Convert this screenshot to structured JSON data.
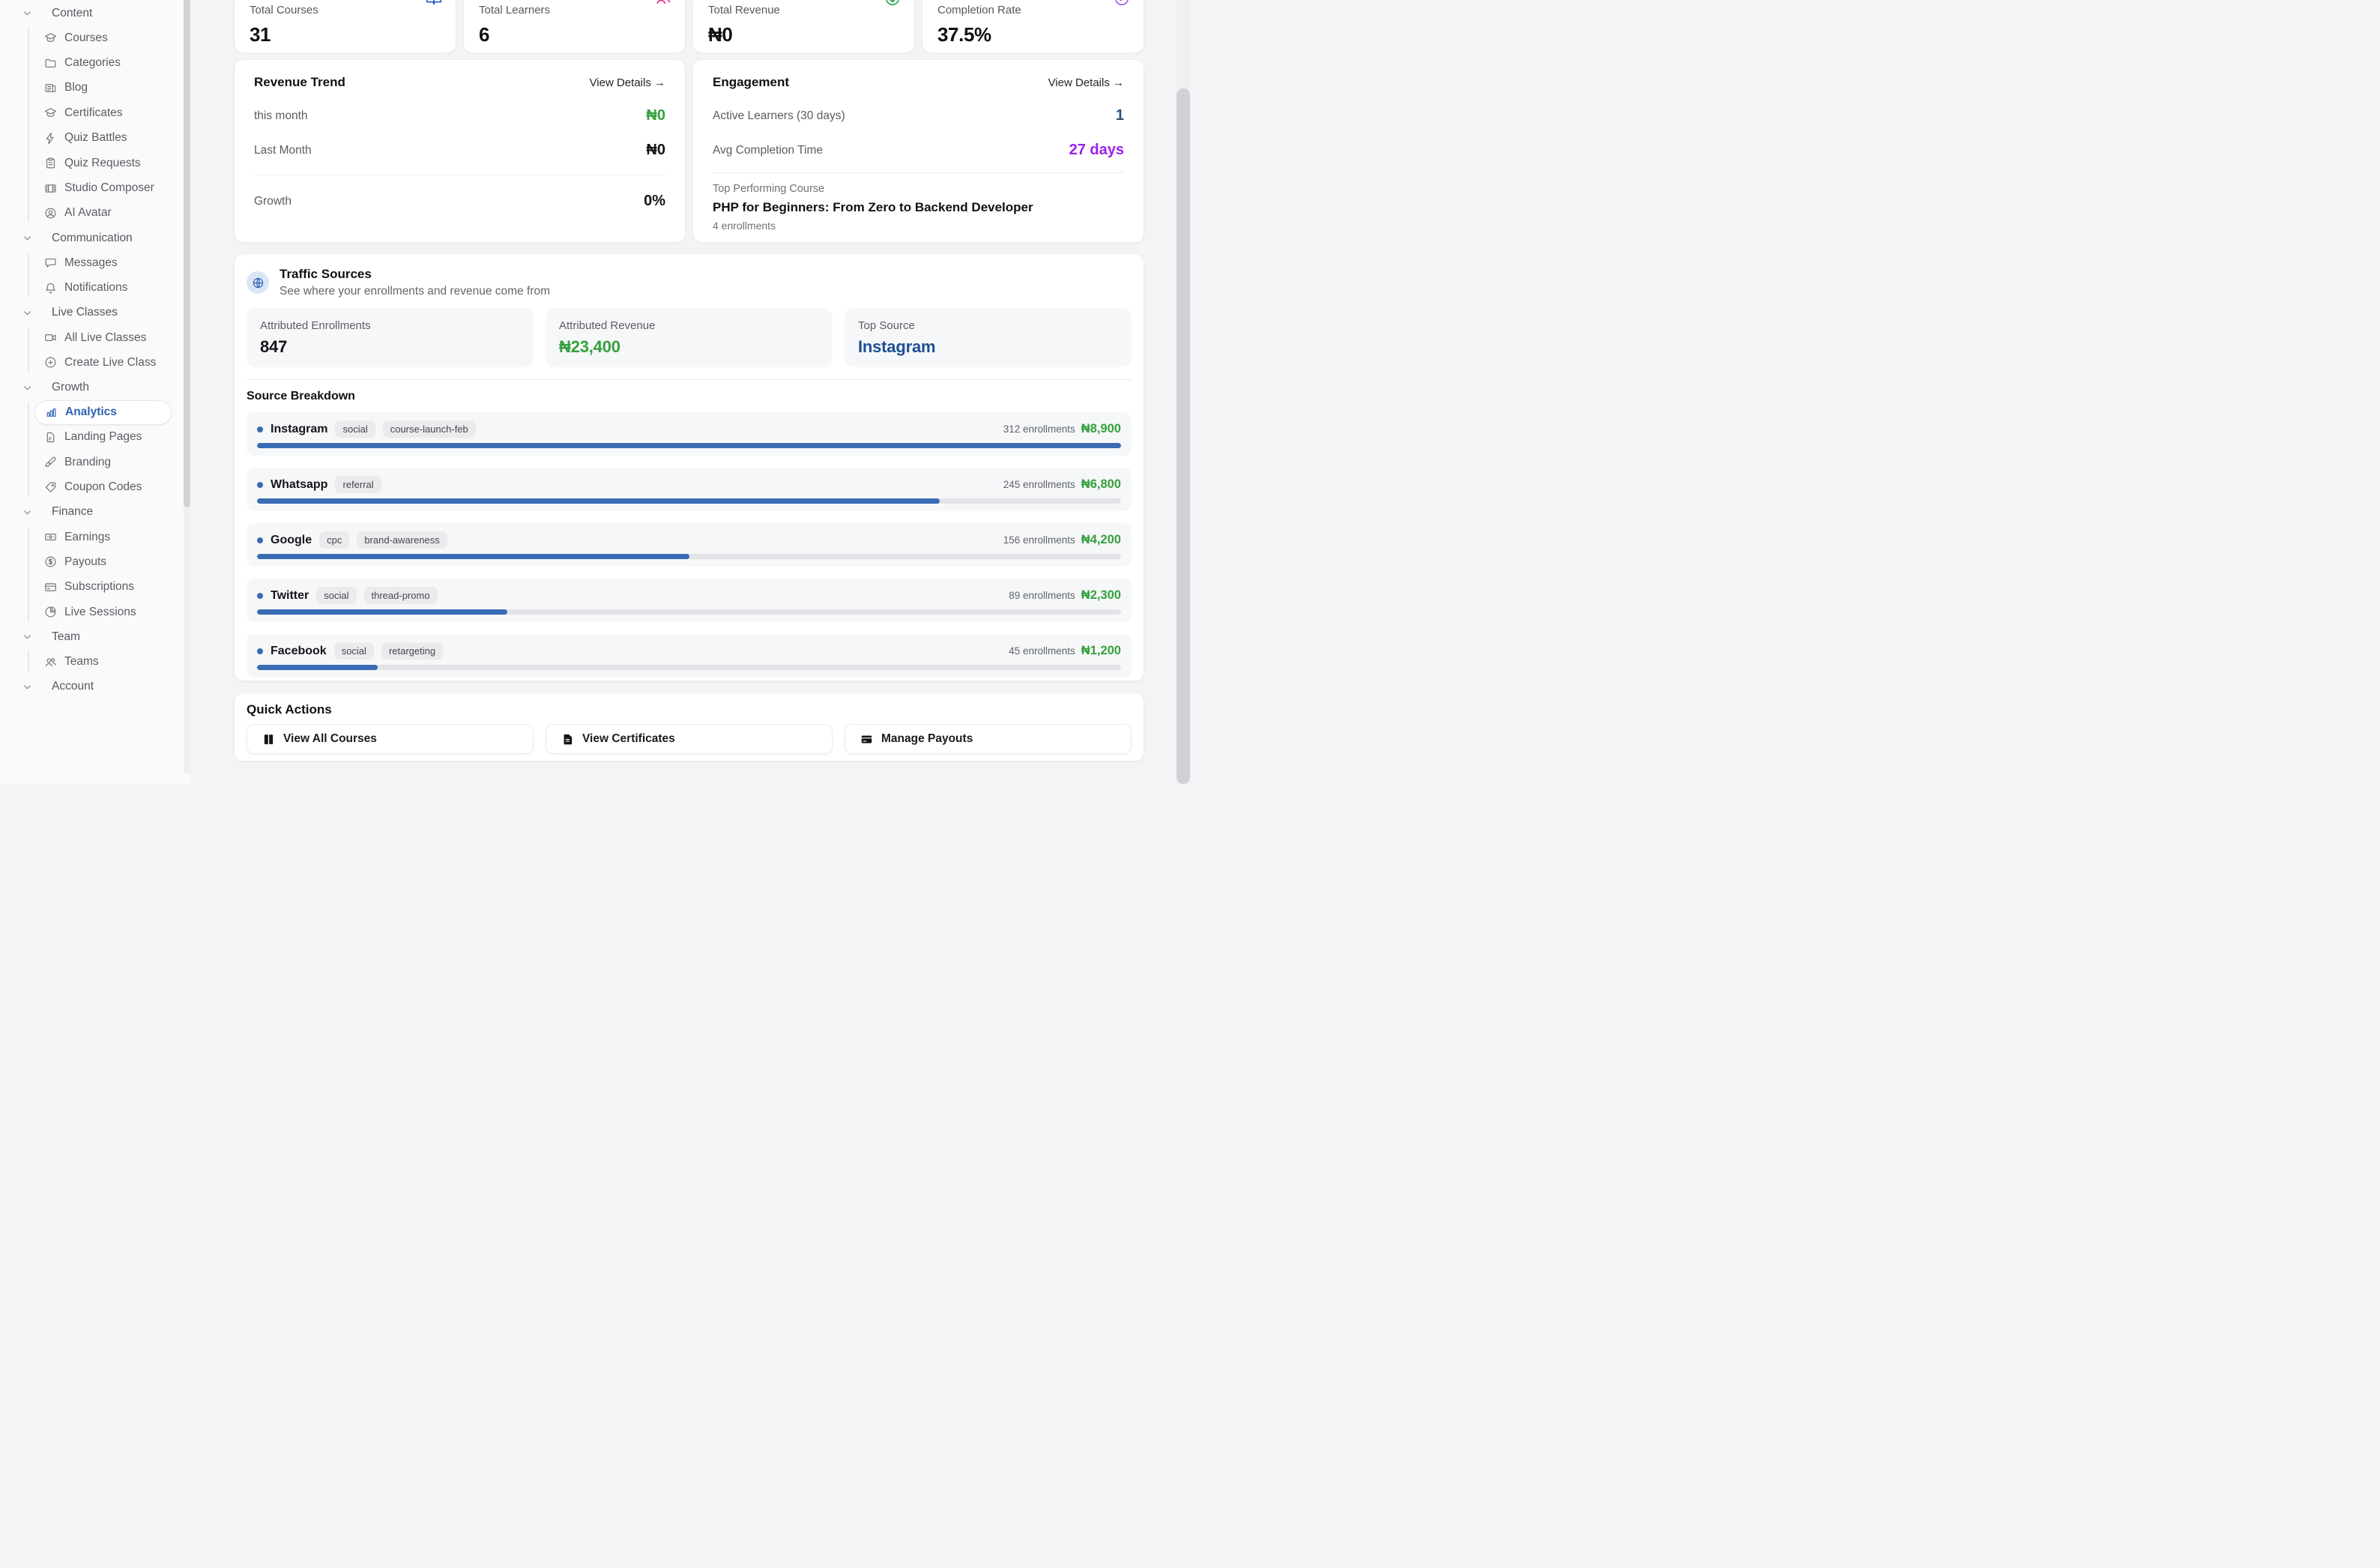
{
  "sidebar": {
    "sections": [
      {
        "label": "Content",
        "chevron": "chevron-down",
        "items": [
          {
            "label": "Courses",
            "icon": "graduation-cap"
          },
          {
            "label": "Categories",
            "icon": "folder"
          },
          {
            "label": "Blog",
            "icon": "newspaper"
          },
          {
            "label": "Certificates",
            "icon": "graduation-cap"
          },
          {
            "label": "Quiz Battles",
            "icon": "lightning"
          },
          {
            "label": "Quiz Requests",
            "icon": "clipboard"
          },
          {
            "label": "Studio Composer",
            "icon": "film"
          },
          {
            "label": "AI Avatar",
            "icon": "user-circle"
          }
        ]
      },
      {
        "label": "Communication",
        "chevron": "chevron-down",
        "items": [
          {
            "label": "Messages",
            "icon": "chat"
          },
          {
            "label": "Notifications",
            "icon": "bell"
          }
        ]
      },
      {
        "label": "Live Classes",
        "chevron": "chevron-down",
        "items": [
          {
            "label": "All Live Classes",
            "icon": "video"
          },
          {
            "label": "Create Live Class",
            "icon": "plus-circle"
          }
        ]
      },
      {
        "label": "Growth",
        "chevron": "chevron-down",
        "items": [
          {
            "label": "Analytics",
            "icon": "bar-chart",
            "active": true
          },
          {
            "label": "Landing Pages",
            "icon": "document"
          },
          {
            "label": "Branding",
            "icon": "brush"
          },
          {
            "label": "Coupon Codes",
            "icon": "tag"
          }
        ]
      },
      {
        "label": "Finance",
        "chevron": "chevron-down",
        "items": [
          {
            "label": "Earnings",
            "icon": "banknote"
          },
          {
            "label": "Payouts",
            "icon": "dollar-circle"
          },
          {
            "label": "Subscriptions",
            "icon": "credit-card"
          },
          {
            "label": "Live Sessions",
            "icon": "pie-chart"
          }
        ]
      },
      {
        "label": "Team",
        "chevron": "chevron-down",
        "items": [
          {
            "label": "Teams",
            "icon": "users"
          }
        ]
      },
      {
        "label": "Account",
        "chevron": "chevron-down",
        "items": []
      }
    ]
  },
  "stats": [
    {
      "label": "Total Courses",
      "value": "31",
      "icon": "book-open",
      "icon_color": "#2456c4"
    },
    {
      "label": "Total Learners",
      "value": "6",
      "icon": "users",
      "icon_color": "#ec2c8c"
    },
    {
      "label": "Total Revenue",
      "value": "₦0",
      "icon": "dollar-circle",
      "icon_color": "#22a447"
    },
    {
      "label": "Completion Rate",
      "value": "37.5%",
      "icon": "check-circle",
      "icon_color": "#a34fe0"
    }
  ],
  "revenue_trend": {
    "title": "Revenue Trend",
    "view_details": "View Details →",
    "rows": [
      {
        "label": "this month",
        "value": "₦0",
        "color": "#35a03f",
        "divider_before": false
      },
      {
        "label": "Last Month",
        "value": "₦0",
        "color": "#141519",
        "divider_before": false
      },
      {
        "label": "Growth",
        "value": "0%",
        "color": "#141519",
        "divider_before": true
      }
    ]
  },
  "engagement": {
    "title": "Engagement",
    "view_details": "View Details →",
    "rows": [
      {
        "label": "Active Learners (30 days)",
        "value": "1",
        "color": "#27507e",
        "divider_before": false
      },
      {
        "label": "Avg Completion Time",
        "value": "27 days",
        "color": "#9c20ea",
        "divider_before": false
      }
    ],
    "top_course_label": "Top Performing Course",
    "top_course": "PHP for Beginners: From Zero to Backend Developer",
    "top_course_sub": "4 enrollments"
  },
  "traffic": {
    "icon": "globe",
    "title": "Traffic Sources",
    "subtitle": "See where your enrollments and revenue come from",
    "tiles": [
      {
        "label": "Attributed Enrollments",
        "value": "847",
        "color": "#141519"
      },
      {
        "label": "Attributed Revenue",
        "value": "₦23,400",
        "color": "#35a03f"
      },
      {
        "label": "Top Source",
        "value": "Instagram",
        "color": "#1e4e96"
      }
    ],
    "breakdown_title": "Source Breakdown",
    "sources": [
      {
        "name": "Instagram",
        "tags": [
          "social",
          "course-launch-feb"
        ],
        "enrollments": "312 enrollments",
        "revenue": "₦8,900",
        "bar_pct": 100
      },
      {
        "name": "Whatsapp",
        "tags": [
          "referral"
        ],
        "enrollments": "245 enrollments",
        "revenue": "₦6,800",
        "bar_pct": 79
      },
      {
        "name": "Google",
        "tags": [
          "cpc",
          "brand-awareness"
        ],
        "enrollments": "156 enrollments",
        "revenue": "₦4,200",
        "bar_pct": 50
      },
      {
        "name": "Twitter",
        "tags": [
          "social",
          "thread-promo"
        ],
        "enrollments": "89 enrollments",
        "revenue": "₦2,300",
        "bar_pct": 29
      },
      {
        "name": "Facebook",
        "tags": [
          "social",
          "retargeting"
        ],
        "enrollments": "45 enrollments",
        "revenue": "₦1,200",
        "bar_pct": 14
      }
    ]
  },
  "quick_actions": {
    "title": "Quick Actions",
    "actions": [
      {
        "label": "View All Courses",
        "icon": "book-solid"
      },
      {
        "label": "View Certificates",
        "icon": "file-text"
      },
      {
        "label": "Manage Payouts",
        "icon": "wallet"
      }
    ]
  },
  "colors": {
    "accent_blue": "#2f63b0",
    "bar_blue": "#3a6bb5",
    "money_green": "#35a03f",
    "purple": "#9c20ea",
    "pink": "#ec2c8c",
    "navy": "#27507e",
    "top_source_blue": "#1e4e96"
  }
}
